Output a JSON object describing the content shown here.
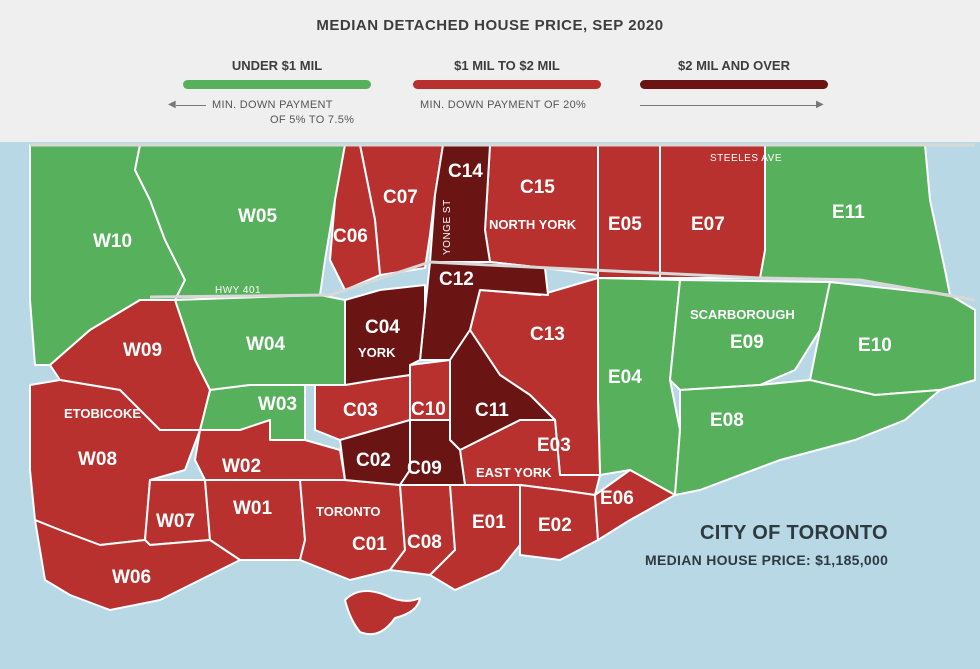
{
  "legend": {
    "title": "MEDIAN DETACHED HOUSE PRICE, SEP 2020",
    "categories": [
      {
        "label": "UNDER $1 MIL",
        "color": "#56b05c"
      },
      {
        "label": "$1 MIL TO $2 MIL",
        "color": "#b8312f"
      },
      {
        "label": "$2 MIL AND OVER",
        "color": "#6a1414"
      }
    ],
    "notes": {
      "left_line1": "MIN. DOWN PAYMENT",
      "left_line2": "OF 5% TO 7.5%",
      "right": "MIN. DOWN PAYMENT OF 20%"
    }
  },
  "map": {
    "districts": {
      "W10": "W10",
      "W05": "W05",
      "W04": "W04",
      "W09": "W09",
      "W03": "W03",
      "W08": "W08",
      "W02": "W02",
      "W07": "W07",
      "W01": "W01",
      "W06": "W06",
      "C07": "C07",
      "C06": "C06",
      "C14": "C14",
      "C15": "C15",
      "C12": "C12",
      "C04": "C04",
      "C13": "C13",
      "C03": "C03",
      "C10": "C10",
      "C11": "C11",
      "C02": "C02",
      "C09": "C09",
      "C01": "C01",
      "C08": "C08",
      "E05": "E05",
      "E07": "E07",
      "E11": "E11",
      "E04": "E04",
      "E09": "E09",
      "E10": "E10",
      "E08": "E08",
      "E03": "E03",
      "E06": "E06",
      "E01": "E01",
      "E02": "E02"
    },
    "areas": {
      "north_york": "NORTH YORK",
      "york": "YORK",
      "etobicoke": "ETOBICOKE",
      "east_york": "EAST YORK",
      "toronto": "TORONTO",
      "scarborough": "SCARBOROUGH"
    },
    "roads": {
      "hwy401": "HWY 401",
      "yonge": "YONGE ST",
      "steeles": "STEELES AVE"
    }
  },
  "info": {
    "title": "CITY OF TORONTO",
    "median_label": "MEDIAN HOUSE PRICE: $1,185,000"
  }
}
